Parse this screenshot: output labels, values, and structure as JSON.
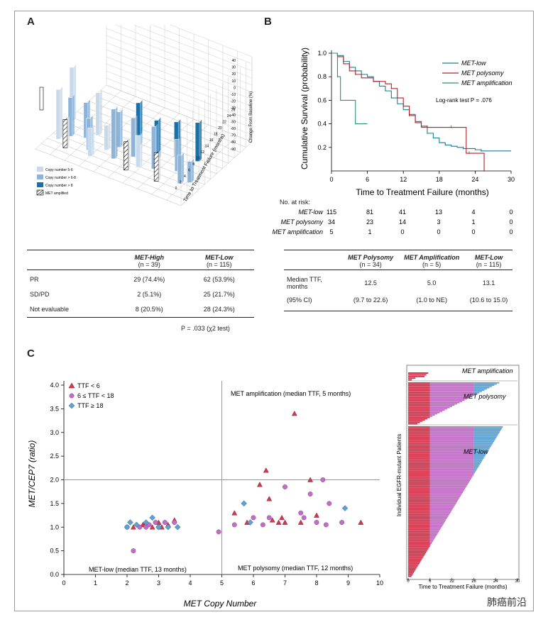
{
  "panel_labels": {
    "a": "A",
    "b": "B",
    "c": "C"
  },
  "colors": {
    "km_low": "#1a7f8e",
    "km_poly": "#b0222e",
    "km_amp": "#2a8f7e",
    "copy_5_6": "#c9d9ea",
    "copy_6_8": "#8db3d6",
    "copy_gt8": "#1a6fa6",
    "ttf_lt6": "#d2384f",
    "ttf_6_18": "#c06fc4",
    "ttf_ge18": "#5fa2d0"
  },
  "panel_a": {
    "z_axis_label": "Change From Baseline (%)",
    "z_ticks": [
      "40",
      "30",
      "20",
      "10",
      "0",
      "-10",
      "-20",
      "-30",
      "-40",
      "-50",
      "-60",
      "-70",
      "-80",
      "-90"
    ],
    "x_axis_label": "Time to Treatment Failure (months)",
    "x_ticks": [
      "0",
      "2",
      "4",
      "6",
      "8",
      "10",
      "12",
      "14",
      "16",
      "18",
      "20",
      "22",
      "24",
      "26"
    ],
    "legend": [
      "Copy number 5-6",
      "Copy number > 6-8",
      "Copy number > 8",
      "MET amplified"
    ]
  },
  "table_a": {
    "col1_title": "MET-High",
    "col1_n": "(n = 39)",
    "col2_title": "MET-Low",
    "col2_n": "(n = 115)",
    "rows": [
      {
        "label": "PR",
        "high": "29 (74.4%)",
        "low": "62 (53.9%)"
      },
      {
        "label": "SD/PD",
        "high": "2 (5.1%)",
        "low": "25 (21.7%)"
      },
      {
        "label": "Not evaluable",
        "high": "8 (20.5%)",
        "low": "28 (24.3%)"
      }
    ],
    "footnote": "P = .033 (χ2 test)"
  },
  "chart_data": [
    {
      "type": "line",
      "panel": "B",
      "title": "",
      "xlabel": "Time to Treatment Failure (months)",
      "ylabel": "Cumulative Survival (probability)",
      "xlim": [
        0,
        30
      ],
      "ylim": [
        0,
        1.0
      ],
      "x_ticks": [
        0,
        6,
        12,
        18,
        24,
        30
      ],
      "y_ticks": [
        0.2,
        0.4,
        0.6,
        0.8,
        1.0
      ],
      "series": [
        {
          "name": "MET-low",
          "x": [
            0,
            1,
            2,
            3,
            4,
            5,
            6,
            7,
            8,
            9,
            10,
            11,
            12,
            13,
            14,
            15,
            16,
            17,
            18,
            19,
            20,
            21,
            22,
            23,
            24,
            25,
            26,
            30
          ],
          "y": [
            1.0,
            0.98,
            0.93,
            0.88,
            0.85,
            0.82,
            0.8,
            0.76,
            0.72,
            0.68,
            0.62,
            0.57,
            0.52,
            0.48,
            0.42,
            0.37,
            0.32,
            0.28,
            0.24,
            0.22,
            0.21,
            0.2,
            0.19,
            0.19,
            0.18,
            0.17,
            0.17,
            0.17
          ]
        },
        {
          "name": "MET polysomy",
          "x": [
            0,
            1,
            2,
            3,
            4,
            5,
            6,
            7,
            8,
            9,
            10,
            11,
            12,
            13,
            14,
            15,
            16,
            17,
            18,
            20,
            22,
            22.5,
            23,
            24,
            25,
            25.5
          ],
          "y": [
            1.0,
            0.97,
            0.91,
            0.85,
            0.82,
            0.79,
            0.79,
            0.76,
            0.76,
            0.74,
            0.7,
            0.62,
            0.55,
            0.47,
            0.41,
            0.38,
            0.37,
            0.37,
            0.37,
            0.37,
            0.37,
            0.15,
            0.15,
            0.15,
            0.15,
            0.0
          ]
        },
        {
          "name": "MET amplification",
          "x": [
            0,
            1,
            1.5,
            3,
            4,
            5,
            6
          ],
          "y": [
            1.0,
            0.8,
            0.6,
            0.6,
            0.4,
            0.4,
            0.4
          ]
        }
      ],
      "legend": [
        "MET-low",
        "MET polysomy",
        "MET amplification"
      ],
      "annotation": "Log-rank test P = .076"
    },
    {
      "type": "scatter",
      "panel": "C",
      "xlabel": "MET Copy Number",
      "ylabel": "MET/CEP7 (ratio)",
      "xlim": [
        0,
        10
      ],
      "ylim": [
        0,
        4.0
      ],
      "x_ticks": [
        0,
        1,
        2,
        3,
        4,
        5,
        6,
        7,
        8,
        9,
        10
      ],
      "y_ticks": [
        0.0,
        0.5,
        1.0,
        1.5,
        2.0,
        2.5,
        3.0,
        3.5,
        4.0
      ],
      "legend": [
        "TTF < 6",
        "6 ≤ TTF < 18",
        "TTF ≥ 18"
      ],
      "region_labels": [
        "MET amplification (median TTF, 5 months)",
        "MET-low (median TTF, 13 months)",
        "MET polysomy (median TTF, 12 months)"
      ],
      "series": [
        {
          "name": "TTF < 6",
          "marker": "triangle",
          "points": [
            [
              2.2,
              1.0
            ],
            [
              2.5,
              1.05
            ],
            [
              2.8,
              1.0
            ],
            [
              3.0,
              1.1
            ],
            [
              3.3,
              1.05
            ],
            [
              3.5,
              1.15
            ],
            [
              2.6,
              1.1
            ],
            [
              3.1,
              1.0
            ],
            [
              5.4,
              1.3
            ],
            [
              5.8,
              1.1
            ],
            [
              6.2,
              1.9
            ],
            [
              6.4,
              2.2
            ],
            [
              6.6,
              1.15
            ],
            [
              6.9,
              1.2
            ],
            [
              7.0,
              1.1
            ],
            [
              7.3,
              3.4
            ],
            [
              7.5,
              1.1
            ],
            [
              7.8,
              2.0
            ],
            [
              8.0,
              1.25
            ],
            [
              9.4,
              1.1
            ],
            [
              6.8,
              1.1
            ],
            [
              6.5,
              1.6
            ]
          ]
        },
        {
          "name": "6 ≤ TTF < 18",
          "marker": "circle",
          "points": [
            [
              2.0,
              1.0
            ],
            [
              2.2,
              0.5
            ],
            [
              2.4,
              1.0
            ],
            [
              2.7,
              1.05
            ],
            [
              3.0,
              1.0
            ],
            [
              3.2,
              1.1
            ],
            [
              3.5,
              1.1
            ],
            [
              4.9,
              0.9
            ],
            [
              5.4,
              1.05
            ],
            [
              6.0,
              1.2
            ],
            [
              6.3,
              1.05
            ],
            [
              6.5,
              1.2
            ],
            [
              7.0,
              1.85
            ],
            [
              7.5,
              1.3
            ],
            [
              7.8,
              1.7
            ],
            [
              7.6,
              1.2
            ],
            [
              8.0,
              1.1
            ],
            [
              8.2,
              2.0
            ],
            [
              8.3,
              1.05
            ],
            [
              8.4,
              1.5
            ],
            [
              8.8,
              1.1
            ],
            [
              2.6,
              1.0
            ],
            [
              2.9,
              1.1
            ]
          ]
        },
        {
          "name": "TTF ≥ 18",
          "marker": "diamond",
          "points": [
            [
              2.0,
              1.0
            ],
            [
              2.3,
              1.05
            ],
            [
              2.6,
              1.1
            ],
            [
              2.8,
              1.2
            ],
            [
              3.0,
              1.0
            ],
            [
              3.6,
              1.0
            ],
            [
              5.7,
              1.5
            ],
            [
              5.9,
              1.1
            ],
            [
              8.9,
              1.4
            ],
            [
              2.1,
              1.1
            ],
            [
              3.3,
              1.0
            ]
          ]
        }
      ]
    },
    {
      "type": "bar",
      "panel": "C-right",
      "xlabel": "Time to Treatment Failure (months)",
      "ylabel": "Individual EGFR-mutant Patients",
      "xlim": [
        0,
        30
      ],
      "x_ticks": [
        0,
        6,
        12,
        18,
        24,
        30
      ],
      "group_labels": [
        "MET amplification",
        "MET polysomy",
        "MET-low"
      ]
    }
  ],
  "panel_b_risk": {
    "title": "No. at risk:",
    "rows": [
      {
        "label": "MET-low",
        "values": [
          "115",
          "81",
          "41",
          "13",
          "4",
          "0"
        ]
      },
      {
        "label": "MET polysomy",
        "values": [
          "34",
          "23",
          "14",
          "3",
          "1",
          "0"
        ]
      },
      {
        "label": "MET amplification",
        "values": [
          "5",
          "1",
          "0",
          "0",
          "0",
          "0"
        ]
      }
    ]
  },
  "table_b": {
    "c1": "MET Polysomy",
    "c1n": "(n = 34)",
    "c2": "MET Amplification",
    "c2n": "(n = 5)",
    "c3": "MET-Low",
    "c3n": "(n = 115)",
    "row1_label": "Median TTF, months",
    "row1": [
      "12.5",
      "5.0",
      "13.1"
    ],
    "row2_label": "(95% CI)",
    "row2": [
      "(9.7 to 22.6)",
      "(1.0 to NE)",
      "(10.6 to 15.0)"
    ]
  },
  "watermark": "肺癌前沿"
}
